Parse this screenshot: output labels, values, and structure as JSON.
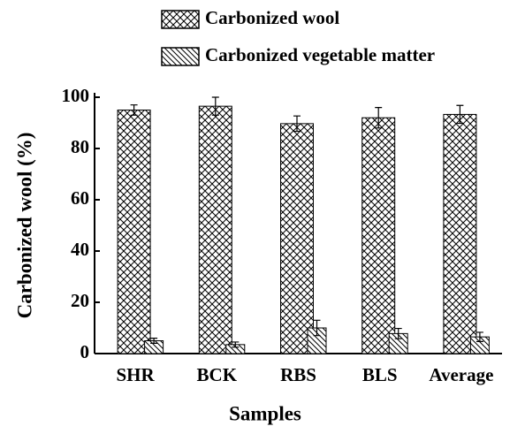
{
  "chart_data": {
    "type": "bar",
    "x_label": "Samples",
    "y_label": "Carbonized wool (%)",
    "categories": [
      "SHR",
      "BCK",
      "RBS",
      "BLS",
      "Average"
    ],
    "series": [
      {
        "name": "Carbonized wool",
        "color": "#000000",
        "pattern": "crosshatch",
        "values": [
          95,
          96.5,
          89.7,
          92,
          93.3
        ],
        "errors": [
          2,
          3.5,
          3,
          4,
          3.5
        ]
      },
      {
        "name": "Carbonized vegetable matter",
        "color": "#000000",
        "pattern": "diagonal",
        "values": [
          5,
          3.5,
          10,
          7.8,
          6.5
        ],
        "errors": [
          1,
          1,
          3,
          2,
          1.8
        ]
      }
    ],
    "ylim": [
      0,
      100
    ],
    "yticks": [
      0,
      20,
      40,
      60,
      80,
      100
    ],
    "legend": "top"
  }
}
